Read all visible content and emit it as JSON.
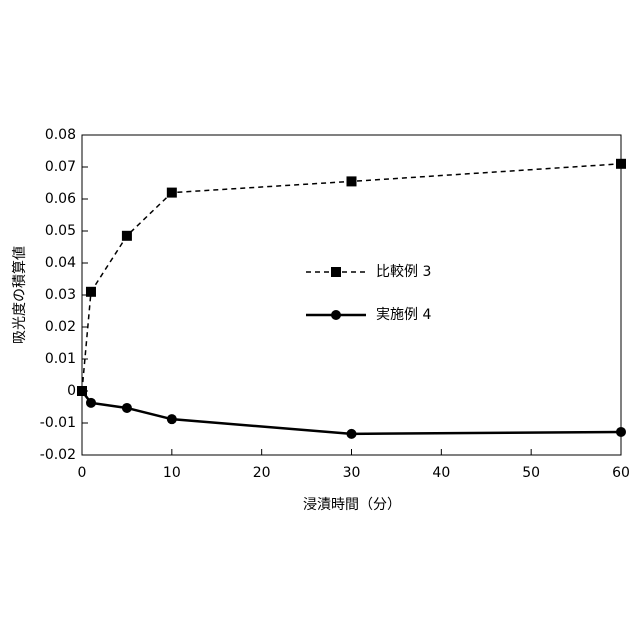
{
  "chart_data": {
    "type": "line",
    "xlabel": "浸漬時間（分）",
    "ylabel": "吸光度の積算値",
    "x": [
      0,
      1,
      5,
      10,
      30,
      60
    ],
    "series": [
      {
        "name": "比較例 3",
        "color": "#000000",
        "line_style": "dashed",
        "marker": "square",
        "values": [
          0,
          0.031,
          0.0485,
          0.062,
          0.0655,
          0.071
        ]
      },
      {
        "name": "実施例 4",
        "color": "#000000",
        "line_style": "solid",
        "marker": "circle",
        "values": [
          0,
          -0.0037,
          -0.0053,
          -0.0088,
          -0.0134,
          -0.0128
        ]
      }
    ],
    "xlim": [
      0,
      60
    ],
    "xticks": [
      0,
      10,
      20,
      30,
      40,
      50,
      60
    ],
    "ylim": [
      -0.02,
      0.08
    ],
    "yticks": [
      0.08,
      0.07,
      0.06,
      0.05,
      0.04,
      0.03,
      0.02,
      0.01,
      0,
      -0.01,
      -0.02
    ],
    "grid": false,
    "legend": "center"
  }
}
